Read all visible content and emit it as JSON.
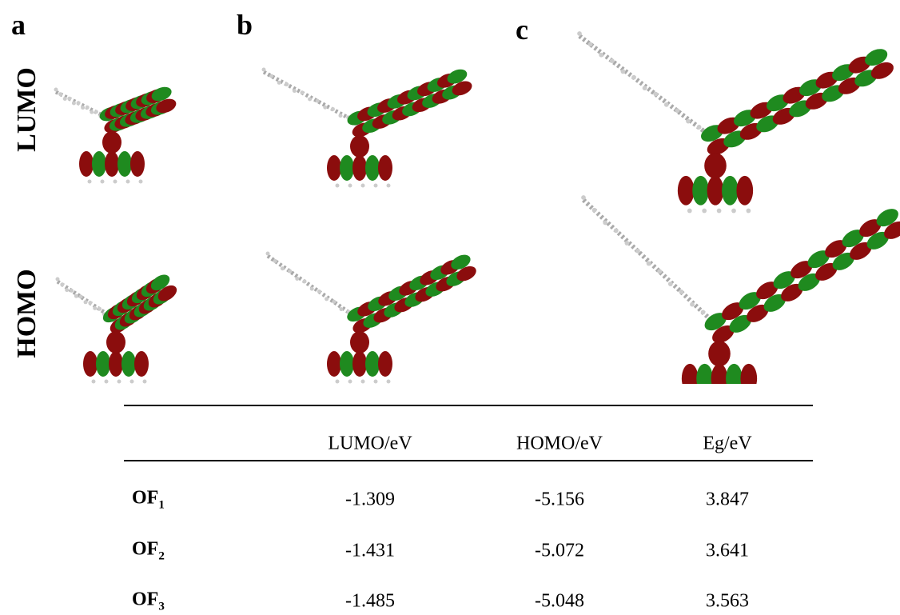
{
  "figure": {
    "panels": [
      "a",
      "b",
      "c"
    ],
    "orbitals": [
      "LUMO",
      "HOMO"
    ],
    "table": {
      "header": [
        "LUMO/eV",
        "HOMO/eV",
        "Eg/eV"
      ],
      "rows": [
        {
          "name": "OF",
          "sub": "1",
          "cells": [
            "-1.309",
            "-5.156",
            "3.847"
          ]
        },
        {
          "name": "OF",
          "sub": "2",
          "cells": [
            "-1.431",
            "-5.072",
            "3.641"
          ]
        },
        {
          "name": "OF",
          "sub": "3",
          "cells": [
            "-1.485",
            "-5.048",
            "3.563"
          ]
        }
      ]
    }
  }
}
